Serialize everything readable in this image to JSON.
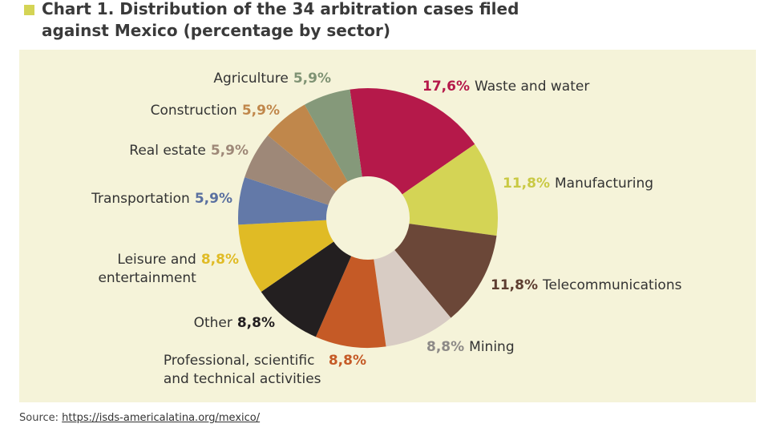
{
  "chart_data": {
    "type": "donut",
    "title": "Chart 1. Distribution of the 34 arbitration cases filed against Mexico (percentage by sector)",
    "categories": [
      "Waste and water",
      "Manufacturing",
      "Telecommunications",
      "Mining",
      "Professional, scientific and technical activities",
      "Other",
      "Leisure and entertainment",
      "Transportation",
      "Real estate",
      "Construction",
      "Agriculture"
    ],
    "values": [
      17.6,
      11.8,
      11.8,
      8.8,
      8.8,
      8.8,
      8.8,
      5.9,
      5.9,
      5.9,
      5.9
    ],
    "value_labels": [
      "17,6%",
      "11,8%",
      "11,8%",
      "8,8%",
      "8,8%",
      "8,8%",
      "8,8%",
      "5,9%",
      "5,9%",
      "5,9%",
      "5,9%"
    ],
    "colors": [
      "#b5194a",
      "#d4d455",
      "#6b4738",
      "#d8ccc4",
      "#c55a26",
      "#231f20",
      "#e0bb25",
      "#6379a8",
      "#9e8878",
      "#c0874b",
      "#85997a"
    ],
    "label_colors": [
      "#b5194a",
      "#c9c944",
      "#5e3e31",
      "#8d8a87",
      "#c55a26",
      "#231f20",
      "#e0bb25",
      "#5a70a0",
      "#9e8878",
      "#c0874b",
      "#7f9374"
    ],
    "source": "Source:",
    "source_url": "https://isds-americalatina.org/mexico/"
  }
}
